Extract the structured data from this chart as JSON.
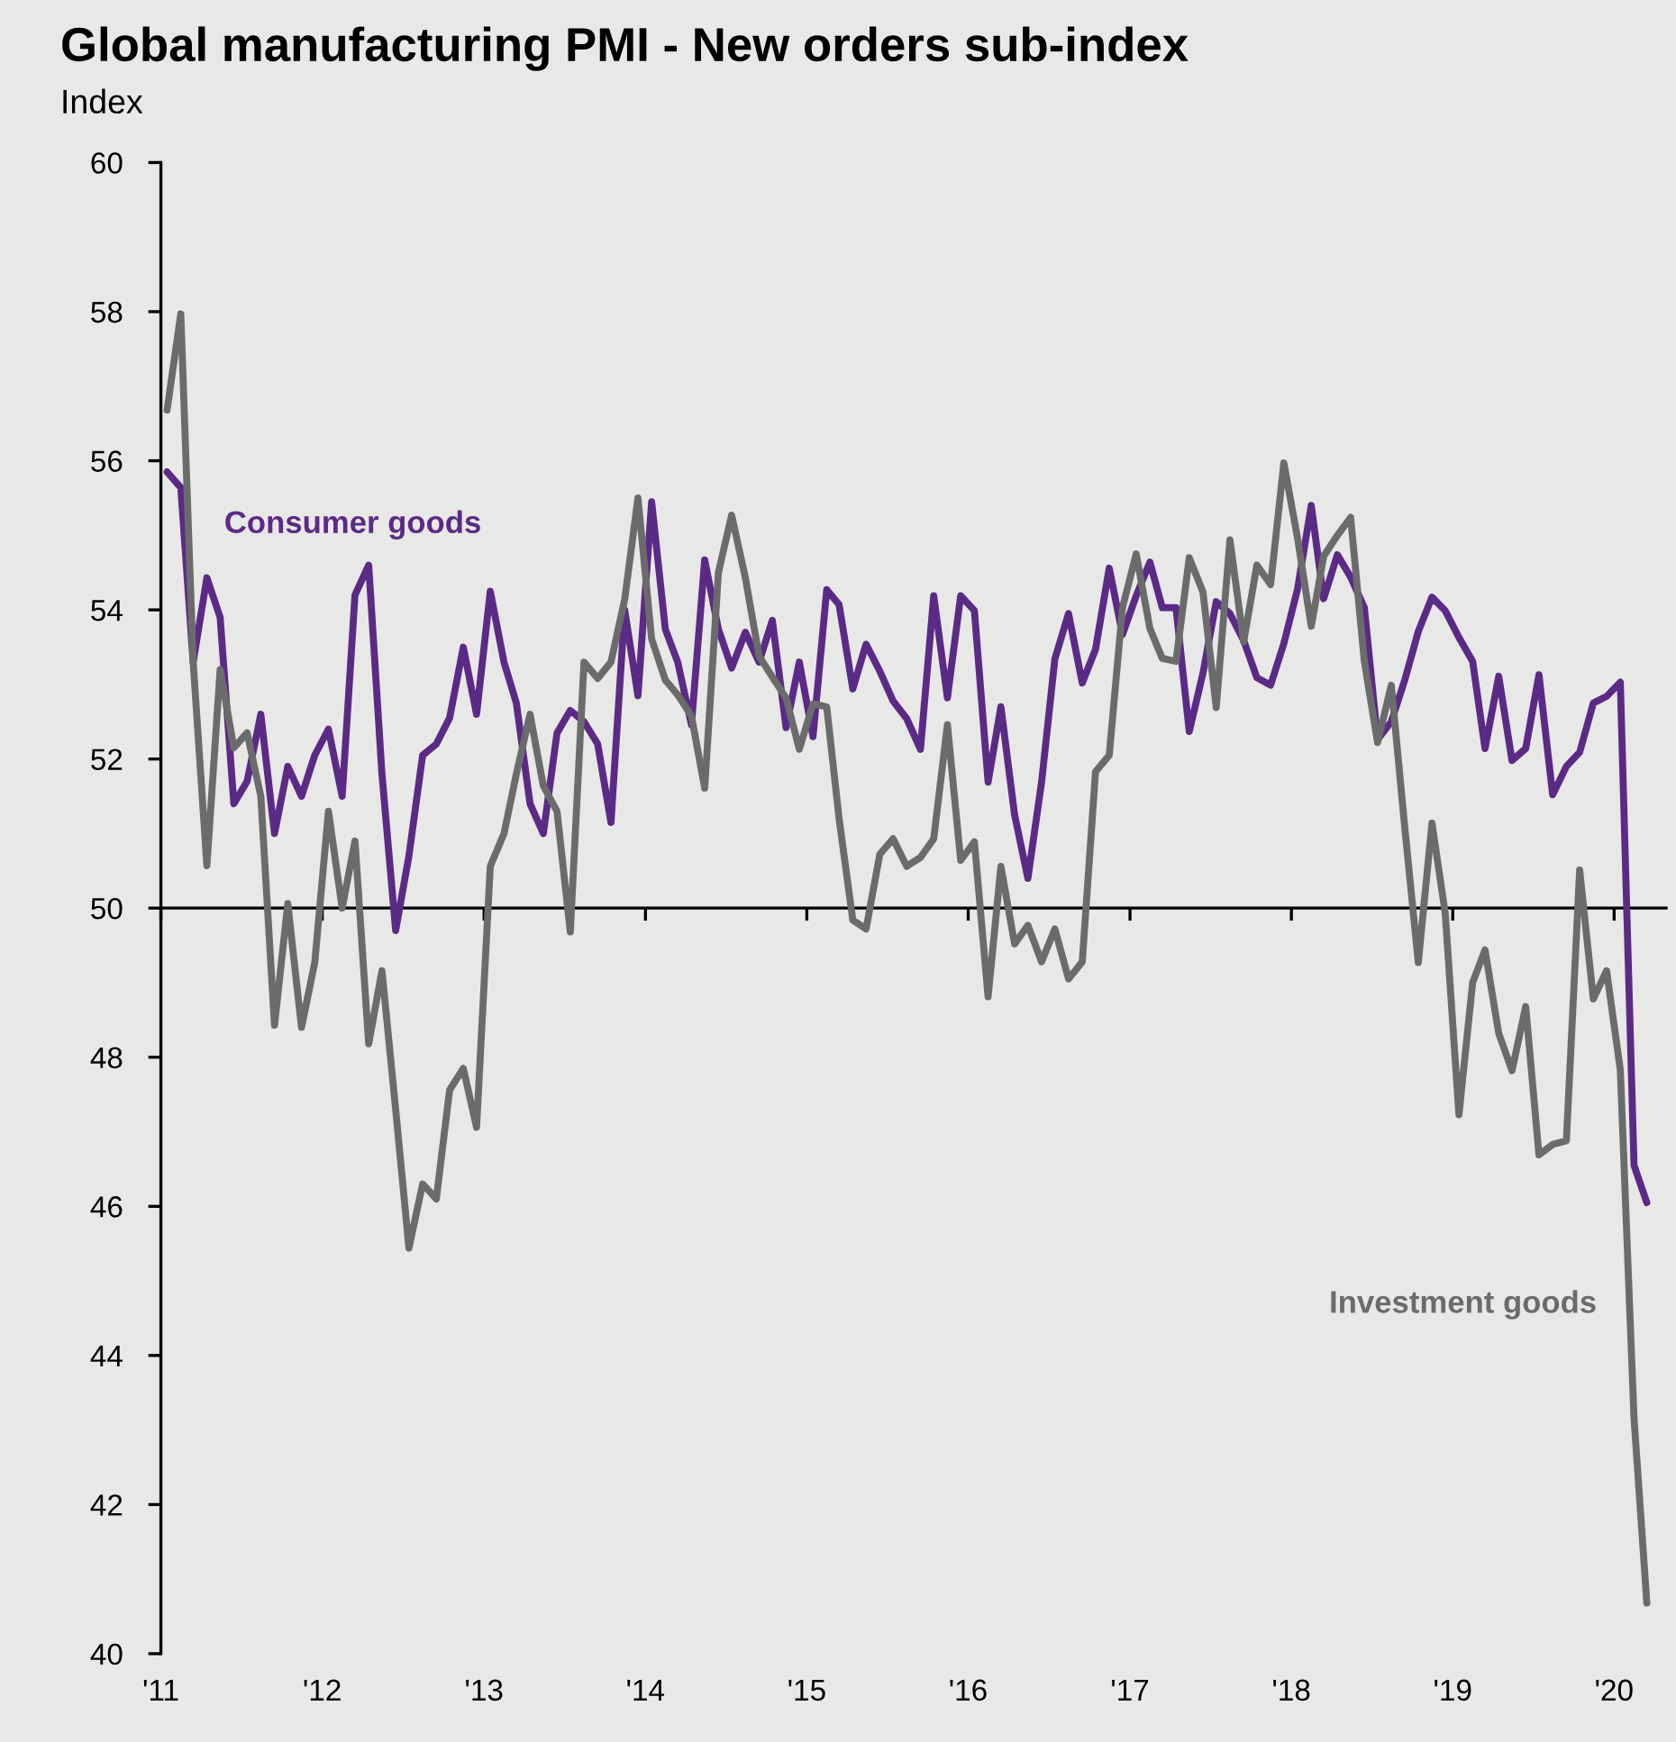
{
  "chart_data": {
    "type": "line",
    "title": "Global manufacturing PMI - New orders sub-index",
    "ylabel": "Index",
    "x": [
      "2011-01-15",
      "2011-02-15",
      "2011-03-15",
      "2011-04-15",
      "2011-05-15",
      "2011-06-15",
      "2011-07-15",
      "2011-08-15",
      "2011-09-15",
      "2011-10-15",
      "2011-11-15",
      "2011-12-15",
      "2012-01-15",
      "2012-02-15",
      "2012-03-15",
      "2012-04-15",
      "2012-05-15",
      "2012-06-15",
      "2012-07-15",
      "2012-08-15",
      "2012-09-15",
      "2012-10-15",
      "2012-11-15",
      "2012-12-15",
      "2013-01-15",
      "2013-02-15",
      "2013-03-15",
      "2013-04-15",
      "2013-05-15",
      "2013-06-15",
      "2013-07-15",
      "2013-08-15",
      "2013-09-15",
      "2013-10-15",
      "2013-11-15",
      "2013-12-15",
      "2014-01-15",
      "2014-02-15",
      "2014-03-15",
      "2014-04-15",
      "2014-05-15",
      "2014-06-15",
      "2014-07-15",
      "2014-08-15",
      "2014-09-15",
      "2014-10-15",
      "2014-11-15",
      "2014-12-15",
      "2015-01-15",
      "2015-02-15",
      "2015-03-15",
      "2015-04-15",
      "2015-05-15",
      "2015-06-15",
      "2015-07-15",
      "2015-08-15",
      "2015-09-15",
      "2015-10-15",
      "2015-11-15",
      "2015-12-15",
      "2016-01-15",
      "2016-02-15",
      "2016-03-15",
      "2016-04-15",
      "2016-05-15",
      "2016-06-15",
      "2016-07-15",
      "2016-08-15",
      "2016-09-15",
      "2016-10-15",
      "2016-11-15",
      "2016-12-15",
      "2017-01-15",
      "2017-02-15",
      "2017-03-15",
      "2017-04-15",
      "2017-05-15",
      "2017-06-15",
      "2017-07-15",
      "2017-08-15",
      "2017-09-15",
      "2017-10-15",
      "2017-11-15",
      "2017-12-15",
      "2018-01-15",
      "2018-02-15",
      "2018-03-15",
      "2018-04-15",
      "2018-05-15",
      "2018-06-15",
      "2018-07-15",
      "2018-08-15",
      "2018-09-15",
      "2018-10-15",
      "2018-11-15",
      "2018-12-15",
      "2019-01-15",
      "2019-02-15",
      "2019-03-15",
      "2019-04-15",
      "2019-05-15",
      "2019-06-15",
      "2019-07-15",
      "2019-08-15",
      "2019-09-15",
      "2019-10-15",
      "2019-11-15",
      "2019-12-15",
      "2020-01-15",
      "2020-02-15",
      "2020-03-15"
    ],
    "series": [
      {
        "name": "Consumer goods",
        "color": "#5b2a86",
        "values": [
          55.85,
          55.64,
          53.3,
          54.43,
          53.9,
          51.4,
          51.7,
          52.6,
          51.0,
          51.9,
          51.5,
          52.05,
          52.4,
          51.5,
          54.2,
          54.6,
          51.8,
          49.7,
          50.7,
          52.05,
          52.2,
          52.55,
          53.5,
          52.6,
          54.25,
          53.3,
          52.75,
          51.4,
          51.0,
          52.35,
          52.65,
          52.5,
          52.2,
          51.15,
          54.0,
          52.85,
          55.45,
          53.74,
          53.3,
          52.46,
          54.67,
          53.74,
          53.22,
          53.7,
          53.3,
          53.86,
          52.42,
          53.3,
          52.3,
          54.27,
          54.07,
          52.94,
          53.54,
          53.18,
          52.78,
          52.54,
          52.13,
          54.19,
          52.82,
          54.19,
          53.99,
          51.69,
          52.7,
          51.25,
          50.4,
          51.69,
          53.34,
          53.95,
          53.02,
          53.47,
          54.56,
          53.67,
          54.19,
          54.64,
          54.03,
          54.03,
          52.37,
          53.15,
          54.11,
          53.95,
          53.59,
          53.09,
          52.99,
          53.55,
          54.28,
          55.4,
          54.15,
          54.74,
          54.44,
          54.03,
          52.26,
          52.5,
          53.07,
          53.71,
          54.17,
          53.99,
          53.63,
          53.31,
          52.14,
          53.11,
          51.98,
          52.14,
          53.13,
          51.52,
          51.9,
          52.09,
          52.75,
          52.84,
          53.03,
          46.55,
          46.05
        ]
      },
      {
        "name": "Investment goods",
        "color": "#6b6b6b",
        "values": [
          56.68,
          57.97,
          53.3,
          50.57,
          53.2,
          52.15,
          52.35,
          51.5,
          48.43,
          50.06,
          48.4,
          49.27,
          51.3,
          50.0,
          50.9,
          48.18,
          49.16,
          47.3,
          45.44,
          46.3,
          46.1,
          47.56,
          47.85,
          47.06,
          50.56,
          51.0,
          51.8,
          52.6,
          51.64,
          51.3,
          49.68,
          53.3,
          53.08,
          53.3,
          54.14,
          55.5,
          53.61,
          53.06,
          52.86,
          52.58,
          51.61,
          54.5,
          55.27,
          54.43,
          53.38,
          53.1,
          52.82,
          52.13,
          52.74,
          52.7,
          51.2,
          49.84,
          49.72,
          50.72,
          50.93,
          50.56,
          50.68,
          50.93,
          52.46,
          50.64,
          50.89,
          48.81,
          50.56,
          49.52,
          49.77,
          49.28,
          49.72,
          49.05,
          49.28,
          51.83,
          52.05,
          54.03,
          54.75,
          53.75,
          53.35,
          53.31,
          54.7,
          54.24,
          52.69,
          54.94,
          53.57,
          54.6,
          54.34,
          55.97,
          54.96,
          53.78,
          54.72,
          55.0,
          55.24,
          53.31,
          52.22,
          52.99,
          51.05,
          49.27,
          51.14,
          49.93,
          47.23,
          49.0,
          49.44,
          48.32,
          47.82,
          48.68,
          46.69,
          46.83,
          46.88,
          50.51,
          48.78,
          49.16,
          47.83,
          43.16,
          40.68
        ]
      }
    ],
    "xlim": [
      "2011-01-01",
      "2020-05-01"
    ],
    "xticks": [
      {
        "value": "2011-01-01",
        "label": "'11"
      },
      {
        "value": "2012-01-01",
        "label": "'12"
      },
      {
        "value": "2013-01-01",
        "label": "'13"
      },
      {
        "value": "2014-01-01",
        "label": "'14"
      },
      {
        "value": "2015-01-01",
        "label": "'15"
      },
      {
        "value": "2016-01-01",
        "label": "'16"
      },
      {
        "value": "2017-01-01",
        "label": "'17"
      },
      {
        "value": "2018-01-01",
        "label": "'18"
      },
      {
        "value": "2019-01-01",
        "label": "'19"
      },
      {
        "value": "2020-01-01",
        "label": "'20"
      }
    ],
    "ylim": [
      40,
      60
    ],
    "yticks": [
      40,
      42,
      44,
      46,
      48,
      50,
      52,
      54,
      56,
      58,
      60
    ],
    "ref_lines": [
      {
        "axis": "y",
        "value": 50,
        "label": null,
        "color": "#000000"
      }
    ],
    "grid": false,
    "legend": false,
    "line_style": "solid",
    "marker": "none"
  }
}
